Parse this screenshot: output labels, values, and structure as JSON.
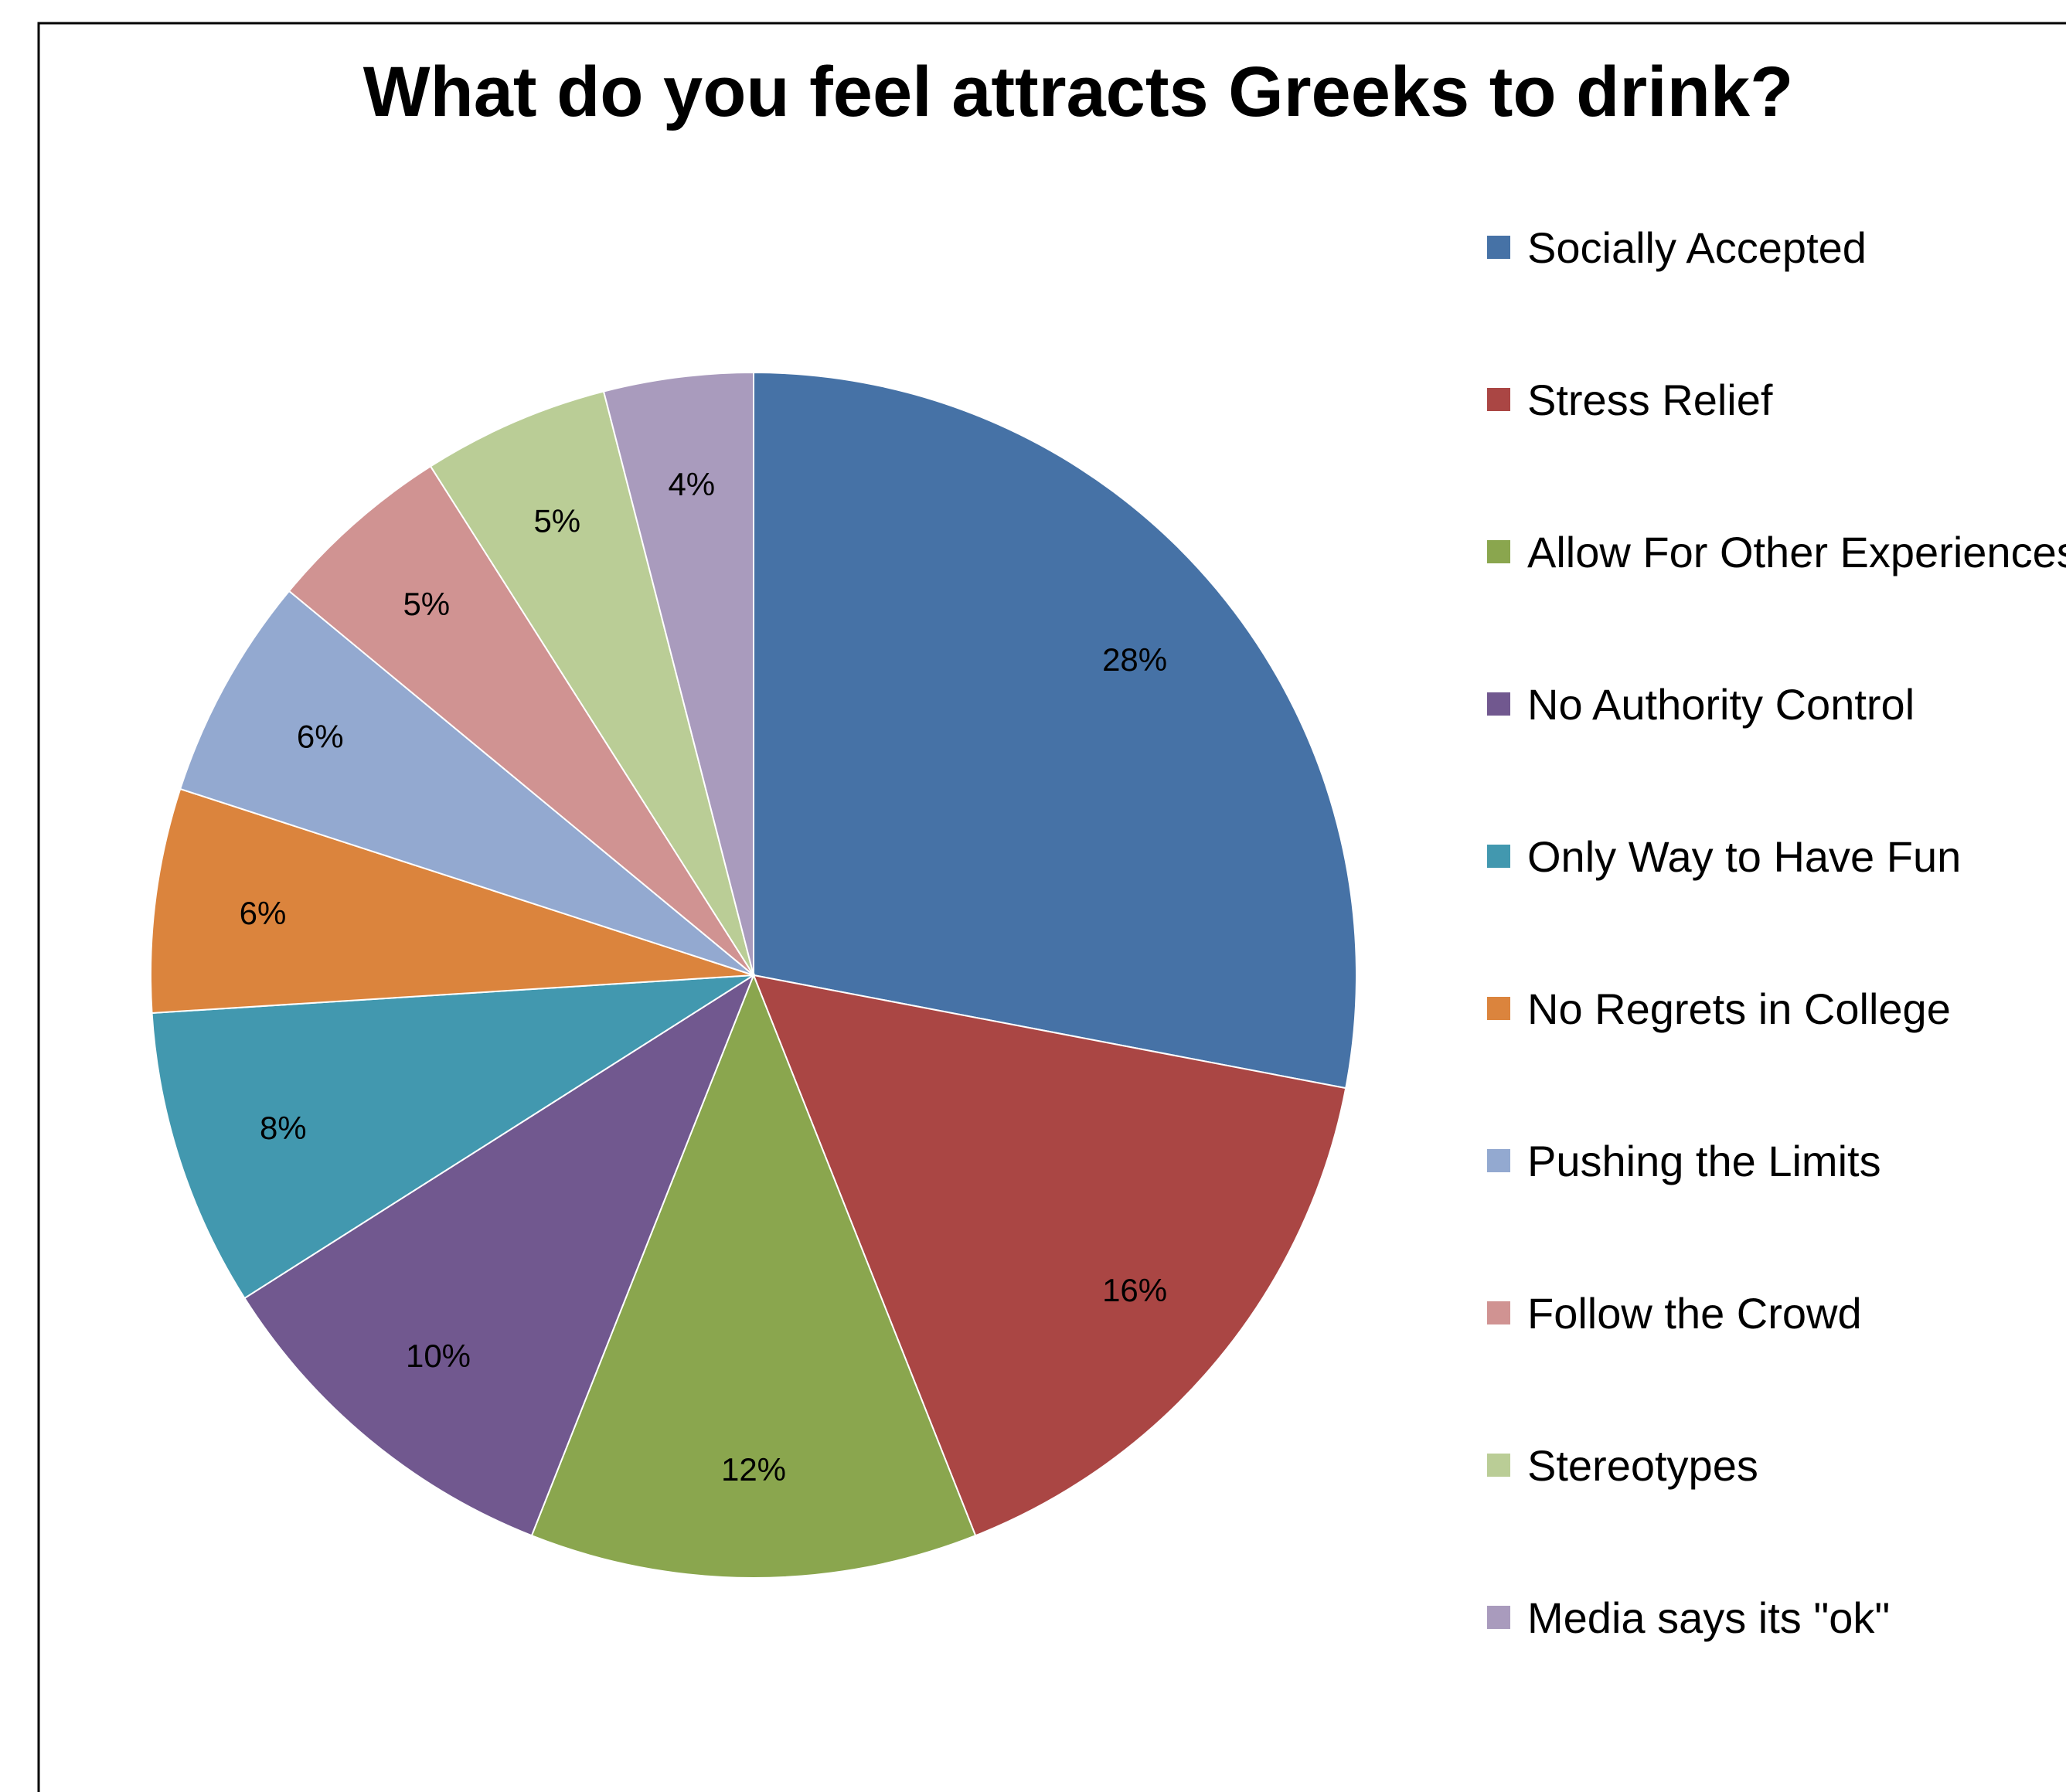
{
  "chart_data": {
    "type": "pie",
    "title": "What do you feel attracts Greeks to drink?",
    "categories": [
      "Socially Accepted",
      "Stress Relief",
      "Allow For Other Experiences",
      "No Authority Control",
      "Only Way to Have Fun",
      "No Regrets in College",
      "Pushing the Limits",
      "Follow the Crowd",
      "Stereotypes",
      "Media says its \"ok\""
    ],
    "values": [
      28,
      16,
      12,
      10,
      8,
      6,
      6,
      5,
      5,
      4
    ],
    "value_labels": [
      "28%",
      "16%",
      "12%",
      "10%",
      "8%",
      "6%",
      "6%",
      "5%",
      "5%",
      "4%"
    ],
    "colors": [
      "#4672A6",
      "#AA4644",
      "#8AA64E",
      "#71588F",
      "#4298AF",
      "#DB843D",
      "#93A9D0",
      "#D09392",
      "#BACD96",
      "#A99BBD"
    ],
    "legend_position": "right",
    "start_angle": "12 o'clock, clockwise"
  }
}
